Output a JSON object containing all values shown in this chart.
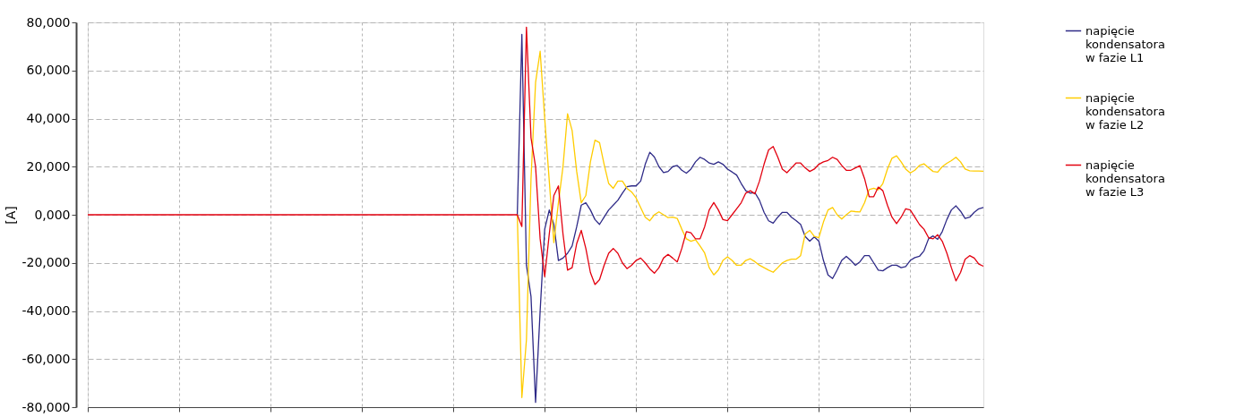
{
  "chart_data": {
    "type": "line",
    "ylabel": "[A]",
    "ylim": [
      -80000,
      80000
    ],
    "yticks": [
      {
        "value": -80000,
        "label": "-80,000"
      },
      {
        "value": -60000,
        "label": "-60,000"
      },
      {
        "value": -40000,
        "label": "-40,000"
      },
      {
        "value": -20000,
        "label": "-20,000"
      },
      {
        "value": 0,
        "label": "0,000"
      },
      {
        "value": 20000,
        "label": "20,000"
      },
      {
        "value": 40000,
        "label": "40,000"
      },
      {
        "value": 60000,
        "label": "60,000"
      },
      {
        "value": 80000,
        "label": "80,000"
      }
    ],
    "categories": [
      null,
      null,
      null,
      null,
      null,
      null,
      null,
      null,
      null,
      null,
      null,
      null,
      null,
      null,
      null,
      null,
      null,
      null,
      null,
      null,
      null,
      null,
      null,
      null,
      null,
      null,
      null,
      null,
      null,
      null,
      null,
      null,
      null,
      null,
      null,
      null,
      null,
      null,
      null,
      null,
      null,
      null,
      null,
      null,
      null,
      null,
      null,
      null,
      null,
      null,
      null,
      null,
      null,
      null,
      null,
      null,
      null,
      null,
      null,
      null,
      null,
      null,
      null,
      null,
      null,
      null,
      null,
      null,
      null,
      null,
      null,
      null,
      null,
      null,
      null,
      null,
      null,
      null,
      null,
      null,
      null,
      null,
      null,
      null,
      null,
      null,
      null,
      null,
      null,
      null,
      null,
      null,
      null,
      null,
      null,
      null,
      null,
      null,
      null,
      null,
      null,
      null,
      null,
      null,
      null,
      null,
      null,
      null,
      null,
      null,
      null,
      null,
      null,
      null,
      null,
      null,
      null,
      null,
      null,
      null,
      null,
      null,
      null,
      null,
      null,
      null,
      null,
      null,
      null,
      null,
      null,
      null,
      null,
      null,
      null,
      null,
      null,
      null,
      null,
      null,
      null,
      null,
      null,
      null,
      null,
      null,
      null,
      null,
      null,
      null,
      null,
      null,
      null,
      null,
      null,
      null,
      null,
      null,
      null,
      null,
      null,
      null,
      null,
      null,
      null,
      null,
      null,
      null,
      null,
      null,
      null,
      null,
      null,
      null,
      null,
      null,
      null,
      null,
      null,
      null,
      null,
      null,
      null,
      null,
      null,
      null,
      null,
      null,
      null,
      null,
      null,
      null,
      null,
      null,
      null,
      null,
      null
    ],
    "tick_labels": "y",
    "grid": true,
    "legend": "right",
    "marker": "none",
    "line_style": "solid",
    "series": [
      {
        "name": "napięcie kondensatora w fazie L1",
        "color": "#2e2a87",
        "values": [
          null,
          null,
          null,
          null,
          null,
          null,
          null,
          null,
          null,
          null,
          null,
          null,
          null,
          null,
          null,
          null,
          null,
          null,
          null,
          null,
          null,
          null,
          null,
          null,
          null,
          null,
          null,
          null,
          null,
          null,
          null,
          null,
          null,
          null,
          null,
          null,
          null,
          null,
          null,
          null,
          null,
          null,
          null,
          null,
          null,
          null,
          null,
          null,
          null,
          null,
          null,
          null,
          null,
          null,
          null,
          null,
          null,
          null,
          null,
          null,
          null,
          null,
          null,
          null,
          null,
          null,
          null,
          null,
          null,
          null,
          null,
          null,
          null,
          null,
          null,
          null,
          null,
          null,
          null,
          null,
          null,
          null,
          null,
          null,
          null,
          null,
          null,
          null,
          null,
          null,
          null,
          null,
          null,
          null,
          0,
          75000,
          -21000,
          -34000,
          -78000,
          -40000,
          -6000,
          2000,
          -4000,
          -19000,
          -18000,
          -16000,
          -13000,
          -5000,
          4000,
          5000,
          2000,
          -2000,
          -4000,
          -1000,
          2000,
          4000,
          6000,
          9000,
          11700,
          12000,
          12000,
          14000,
          21000,
          26000,
          24000,
          20000,
          17500,
          18000,
          20000,
          20500,
          18500,
          17300,
          19000,
          22000,
          23900,
          23000,
          21500,
          21000,
          22000,
          21000,
          19000,
          17800,
          16500,
          13000,
          10000,
          9000,
          9200,
          6000,
          1000,
          -2500,
          -3500,
          -1000,
          1000,
          1000,
          -1000,
          -2400,
          -4000,
          -9000,
          -11000,
          -9200,
          -11000,
          -19000,
          -25000,
          -26500,
          -23000,
          -19000,
          -17300,
          -19000,
          -21000,
          -19500,
          -17000,
          -17000,
          -20000,
          -23000,
          -23300,
          -22000,
          -21000,
          -21000,
          -22000,
          -21500,
          -19000,
          -17800,
          -17300,
          -15000,
          -10000,
          -8800,
          -10200,
          -7000,
          -2000,
          2000,
          3700,
          1500,
          -1500,
          -1000,
          1000,
          2500,
          3000
        ]
      },
      {
        "name": "napięcie kondensatora w fazie L2",
        "color": "#ffcc00",
        "values": [
          null,
          null,
          null,
          null,
          null,
          null,
          null,
          null,
          null,
          null,
          null,
          null,
          null,
          null,
          null,
          null,
          null,
          null,
          null,
          null,
          null,
          null,
          null,
          null,
          null,
          null,
          null,
          null,
          null,
          null,
          null,
          null,
          null,
          null,
          null,
          null,
          null,
          null,
          null,
          null,
          null,
          null,
          null,
          null,
          null,
          null,
          null,
          null,
          null,
          null,
          null,
          null,
          null,
          null,
          null,
          null,
          null,
          null,
          null,
          null,
          null,
          null,
          null,
          null,
          null,
          null,
          null,
          null,
          null,
          null,
          null,
          null,
          null,
          null,
          null,
          null,
          null,
          null,
          null,
          null,
          null,
          null,
          null,
          null,
          null,
          null,
          null,
          null,
          null,
          null,
          null,
          null,
          null,
          null,
          0,
          -76000,
          -52000,
          15000,
          55000,
          68000,
          40000,
          14000,
          -11600,
          5000,
          20000,
          42000,
          35000,
          18000,
          5000,
          8000,
          22000,
          31000,
          30000,
          21000,
          13000,
          11000,
          14000,
          14000,
          11000,
          9500,
          7000,
          3000,
          -1000,
          -2500,
          0,
          1200,
          0,
          -1200,
          -1000,
          -1500,
          -6000,
          -10000,
          -11000,
          -10400,
          -13000,
          -15900,
          -22000,
          -25000,
          -23000,
          -19000,
          -17500,
          -19000,
          -21000,
          -21000,
          -19000,
          -18300,
          -19500,
          -21000,
          -22000,
          -23000,
          -23900,
          -22000,
          -20000,
          -19000,
          -18500,
          -18500,
          -17000,
          -8000,
          -6500,
          -9000,
          -9500,
          -3000,
          2000,
          3000,
          0,
          -1800,
          0,
          1500,
          1300,
          1200,
          5000,
          10500,
          11000,
          10400,
          13000,
          19000,
          23500,
          24500,
          22000,
          19000,
          17400,
          18500,
          20500,
          21200,
          19500,
          18000,
          17700,
          20000,
          21400,
          22500,
          23900,
          22000,
          19000,
          18300,
          18200,
          18200,
          18100
        ]
      },
      {
        "name": "napięcie kondensatora w fazie L3",
        "color": "#e3000f",
        "values": [
          0,
          0,
          0,
          0,
          0,
          0,
          0,
          0,
          0,
          0,
          0,
          0,
          0,
          0,
          0,
          0,
          0,
          0,
          0,
          0,
          0,
          0,
          0,
          0,
          0,
          0,
          0,
          0,
          0,
          0,
          0,
          0,
          0,
          0,
          0,
          0,
          0,
          0,
          0,
          0,
          0,
          0,
          0,
          0,
          0,
          0,
          0,
          0,
          0,
          0,
          0,
          0,
          0,
          0,
          0,
          0,
          0,
          0,
          0,
          0,
          0,
          0,
          0,
          0,
          0,
          0,
          0,
          0,
          0,
          0,
          0,
          0,
          0,
          0,
          0,
          0,
          0,
          0,
          0,
          0,
          0,
          0,
          0,
          0,
          0,
          0,
          0,
          0,
          0,
          0,
          0,
          0,
          0,
          0,
          0,
          -4900,
          78000,
          32000,
          20000,
          -10000,
          -25700,
          -8000,
          8000,
          12000,
          -8000,
          -23000,
          -22000,
          -12000,
          -6500,
          -14000,
          -24000,
          -29000,
          -27000,
          -21000,
          -16000,
          -14000,
          -16000,
          -20000,
          -22400,
          -21000,
          -19000,
          -18000,
          -20000,
          -22500,
          -24300,
          -22000,
          -18000,
          -16500,
          -18000,
          -19600,
          -14000,
          -7000,
          -7500,
          -10000,
          -10000,
          -5000,
          2000,
          5100,
          2000,
          -2000,
          -2500,
          0,
          2500,
          5000,
          9000,
          10000,
          8700,
          14000,
          21000,
          27000,
          28400,
          24000,
          19000,
          17500,
          19500,
          21500,
          21500,
          19500,
          18000,
          19000,
          21000,
          22000,
          22600,
          23900,
          23000,
          20500,
          18500,
          18500,
          19500,
          20400,
          15000,
          7500,
          7500,
          11500,
          10000,
          4000,
          -1000,
          -3700,
          -1000,
          2500,
          2000,
          -1000,
          -4000,
          -6000,
          -9500,
          -10000,
          -8300,
          -11000,
          -15900,
          -22000,
          -27500,
          -24000,
          -18500,
          -17000,
          -18000,
          -20500,
          -21400
        ]
      }
    ]
  }
}
